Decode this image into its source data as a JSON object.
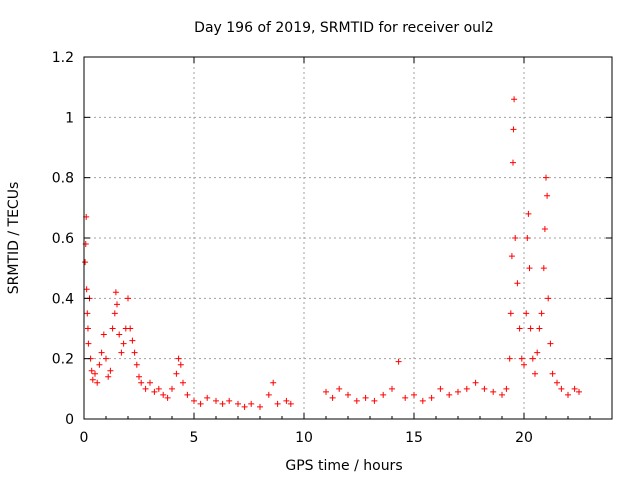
{
  "chart_data": {
    "type": "scatter",
    "title": "Day 196 of 2019, SRMTID for receiver oul2",
    "xlabel": "GPS time / hours",
    "ylabel": "SRMTID / TECUs",
    "xlim": [
      0,
      24
    ],
    "ylim": [
      0,
      1.2
    ],
    "x_ticks": [
      0,
      5,
      10,
      15,
      20
    ],
    "x_tick_labels": [
      "0",
      "5",
      "10",
      "15",
      "20"
    ],
    "y_ticks": [
      0,
      0.2,
      0.4,
      0.6,
      0.8,
      1.0,
      1.2
    ],
    "y_tick_labels": [
      "0",
      "0.2",
      "0.4",
      "0.6",
      "0.8",
      "1",
      "1.2"
    ],
    "grid": true,
    "marker": "plus",
    "colors": {
      "series": "#ff0000",
      "grid": "#a0a0a0",
      "axis": "#000000"
    },
    "series": [
      {
        "name": "SRMTID",
        "points": [
          [
            0.05,
            0.52
          ],
          [
            0.08,
            0.58
          ],
          [
            0.1,
            0.67
          ],
          [
            0.12,
            0.43
          ],
          [
            0.15,
            0.35
          ],
          [
            0.18,
            0.3
          ],
          [
            0.2,
            0.25
          ],
          [
            0.25,
            0.4
          ],
          [
            0.3,
            0.2
          ],
          [
            0.35,
            0.16
          ],
          [
            0.4,
            0.13
          ],
          [
            0.5,
            0.15
          ],
          [
            0.6,
            0.12
          ],
          [
            0.7,
            0.18
          ],
          [
            0.8,
            0.22
          ],
          [
            0.9,
            0.28
          ],
          [
            1.0,
            0.2
          ],
          [
            1.1,
            0.14
          ],
          [
            1.2,
            0.16
          ],
          [
            1.3,
            0.3
          ],
          [
            1.4,
            0.35
          ],
          [
            1.45,
            0.42
          ],
          [
            1.5,
            0.38
          ],
          [
            1.6,
            0.28
          ],
          [
            1.7,
            0.22
          ],
          [
            1.8,
            0.25
          ],
          [
            1.9,
            0.3
          ],
          [
            2.0,
            0.4
          ],
          [
            2.1,
            0.3
          ],
          [
            2.2,
            0.26
          ],
          [
            2.3,
            0.22
          ],
          [
            2.4,
            0.18
          ],
          [
            2.5,
            0.14
          ],
          [
            2.6,
            0.12
          ],
          [
            2.8,
            0.1
          ],
          [
            3.0,
            0.12
          ],
          [
            3.2,
            0.09
          ],
          [
            3.4,
            0.1
          ],
          [
            3.6,
            0.08
          ],
          [
            3.8,
            0.07
          ],
          [
            4.0,
            0.1
          ],
          [
            4.2,
            0.15
          ],
          [
            4.3,
            0.2
          ],
          [
            4.4,
            0.18
          ],
          [
            4.5,
            0.12
          ],
          [
            4.7,
            0.08
          ],
          [
            5.0,
            0.06
          ],
          [
            5.3,
            0.05
          ],
          [
            5.6,
            0.07
          ],
          [
            6.0,
            0.06
          ],
          [
            6.3,
            0.05
          ],
          [
            6.6,
            0.06
          ],
          [
            7.0,
            0.05
          ],
          [
            7.3,
            0.04
          ],
          [
            7.6,
            0.05
          ],
          [
            8.0,
            0.04
          ],
          [
            8.4,
            0.08
          ],
          [
            8.6,
            0.12
          ],
          [
            8.8,
            0.05
          ],
          [
            9.2,
            0.06
          ],
          [
            9.4,
            0.05
          ],
          [
            11.0,
            0.09
          ],
          [
            11.3,
            0.07
          ],
          [
            11.6,
            0.1
          ],
          [
            12.0,
            0.08
          ],
          [
            12.4,
            0.06
          ],
          [
            12.8,
            0.07
          ],
          [
            13.2,
            0.06
          ],
          [
            13.6,
            0.08
          ],
          [
            14.0,
            0.1
          ],
          [
            14.3,
            0.19
          ],
          [
            14.6,
            0.07
          ],
          [
            15.0,
            0.08
          ],
          [
            15.4,
            0.06
          ],
          [
            15.8,
            0.07
          ],
          [
            16.2,
            0.1
          ],
          [
            16.6,
            0.08
          ],
          [
            17.0,
            0.09
          ],
          [
            17.4,
            0.1
          ],
          [
            17.8,
            0.12
          ],
          [
            18.2,
            0.1
          ],
          [
            18.6,
            0.09
          ],
          [
            19.0,
            0.08
          ],
          [
            19.2,
            0.1
          ],
          [
            19.35,
            0.2
          ],
          [
            19.4,
            0.35
          ],
          [
            19.45,
            0.54
          ],
          [
            19.5,
            0.85
          ],
          [
            19.52,
            0.96
          ],
          [
            19.55,
            1.06
          ],
          [
            19.6,
            0.6
          ],
          [
            19.7,
            0.45
          ],
          [
            19.8,
            0.3
          ],
          [
            19.9,
            0.2
          ],
          [
            20.0,
            0.18
          ],
          [
            20.1,
            0.35
          ],
          [
            20.15,
            0.6
          ],
          [
            20.2,
            0.68
          ],
          [
            20.25,
            0.5
          ],
          [
            20.3,
            0.3
          ],
          [
            20.4,
            0.2
          ],
          [
            20.5,
            0.15
          ],
          [
            20.6,
            0.22
          ],
          [
            20.7,
            0.3
          ],
          [
            20.8,
            0.35
          ],
          [
            20.9,
            0.5
          ],
          [
            20.95,
            0.63
          ],
          [
            21.0,
            0.8
          ],
          [
            21.05,
            0.74
          ],
          [
            21.1,
            0.4
          ],
          [
            21.2,
            0.25
          ],
          [
            21.3,
            0.15
          ],
          [
            21.5,
            0.12
          ],
          [
            21.7,
            0.1
          ],
          [
            22.0,
            0.08
          ],
          [
            22.3,
            0.1
          ],
          [
            22.5,
            0.09
          ]
        ]
      }
    ]
  }
}
